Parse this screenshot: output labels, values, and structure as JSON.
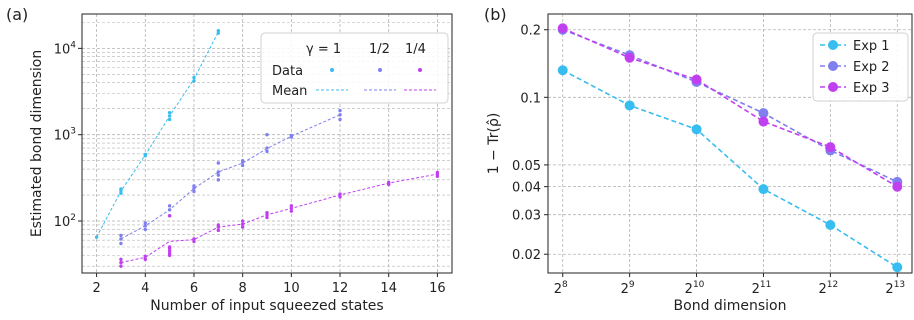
{
  "colors": {
    "gamma_1": "#38bdf0",
    "gamma_half": "#7f7ff0",
    "gamma_quarter": "#c040f0",
    "exp1": "#38bdf0",
    "exp2": "#7f7ff0",
    "exp3": "#c040f0",
    "grid": "#b4b4b4"
  },
  "chart_data": [
    {
      "type": "scatter",
      "panel_label": "(a)",
      "xlabel": "Number of input squeezed states",
      "ylabel": "Estimated bond dimension",
      "xlim": [
        1.4,
        16.6
      ],
      "ylim": [
        25,
        25000
      ],
      "yscale": "log",
      "grid": true,
      "legend_placement": "top-right",
      "x_ticks": [
        2,
        4,
        6,
        8,
        10,
        12,
        14,
        16
      ],
      "y_ticks": [
        {
          "value": 100,
          "base": "10",
          "exp": "2"
        },
        {
          "value": 1000,
          "base": "10",
          "exp": "3"
        },
        {
          "value": 10000,
          "base": "10",
          "exp": "4"
        }
      ],
      "legend": {
        "gamma_header": "γ = 1",
        "col_labels": [
          "1/2",
          "1/4"
        ],
        "row_labels": [
          "Data",
          "Mean"
        ]
      },
      "series": [
        {
          "key": "gamma_1",
          "points": [
            [
              2,
              65
            ],
            [
              3,
              210
            ],
            [
              3,
              225
            ],
            [
              3,
              235
            ],
            [
              4,
              570
            ],
            [
              4,
              590
            ],
            [
              5,
              1500
            ],
            [
              5,
              1650
            ],
            [
              5,
              1800
            ],
            [
              6,
              4200
            ],
            [
              6,
              4600
            ],
            [
              7,
              15000
            ],
            [
              7,
              16000
            ]
          ],
          "mean": [
            [
              2,
              65
            ],
            [
              3,
              222
            ],
            [
              4,
              580
            ],
            [
              5,
              1640
            ],
            [
              6,
              4400
            ],
            [
              7,
              15500
            ]
          ]
        },
        {
          "key": "gamma_half",
          "points": [
            [
              3,
              55
            ],
            [
              3,
              62
            ],
            [
              3,
              68
            ],
            [
              4,
              80
            ],
            [
              4,
              88
            ],
            [
              4,
              95
            ],
            [
              5,
              115
            ],
            [
              5,
              135
            ],
            [
              5,
              150
            ],
            [
              6,
              220
            ],
            [
              6,
              240
            ],
            [
              6,
              255
            ],
            [
              7,
              300
            ],
            [
              7,
              340
            ],
            [
              7,
              370
            ],
            [
              7,
              470
            ],
            [
              8,
              440
            ],
            [
              8,
              480
            ],
            [
              8,
              500
            ],
            [
              9,
              640
            ],
            [
              9,
              700
            ],
            [
              9,
              1000
            ],
            [
              10,
              940
            ],
            [
              10,
              980
            ],
            [
              12,
              1500
            ],
            [
              12,
              1700
            ],
            [
              12,
              1900
            ]
          ],
          "mean": [
            [
              3,
              62
            ],
            [
              4,
              88
            ],
            [
              5,
              135
            ],
            [
              6,
              238
            ],
            [
              7,
              370
            ],
            [
              8,
              470
            ],
            [
              9,
              690
            ],
            [
              10,
              960
            ],
            [
              12,
              1700
            ]
          ]
        },
        {
          "key": "gamma_quarter",
          "points": [
            [
              3,
              30
            ],
            [
              3,
              33
            ],
            [
              3,
              36
            ],
            [
              4,
              36
            ],
            [
              4,
              39
            ],
            [
              5,
              40
            ],
            [
              5,
              42
            ],
            [
              5,
              45
            ],
            [
              5,
              48
            ],
            [
              5,
              50
            ],
            [
              5,
              115
            ],
            [
              6,
              58
            ],
            [
              6,
              62
            ],
            [
              7,
              78
            ],
            [
              7,
              85
            ],
            [
              7,
              90
            ],
            [
              8,
              85
            ],
            [
              8,
              92
            ],
            [
              8,
              100
            ],
            [
              9,
              110
            ],
            [
              9,
              118
            ],
            [
              9,
              125
            ],
            [
              10,
              130
            ],
            [
              10,
              140
            ],
            [
              10,
              150
            ],
            [
              12,
              190
            ],
            [
              12,
              205
            ],
            [
              14,
              265
            ],
            [
              14,
              280
            ],
            [
              16,
              330
            ],
            [
              16,
              350
            ],
            [
              16,
              365
            ]
          ],
          "mean": [
            [
              3,
              33
            ],
            [
              4,
              38
            ],
            [
              5,
              58
            ],
            [
              6,
              61
            ],
            [
              7,
              85
            ],
            [
              8,
              92
            ],
            [
              9,
              118
            ],
            [
              10,
              140
            ],
            [
              12,
              200
            ],
            [
              14,
              275
            ],
            [
              16,
              350
            ]
          ]
        }
      ]
    },
    {
      "type": "line",
      "panel_label": "(b)",
      "xlabel": "Bond dimension",
      "ylabel": "1 − Tr(ρ̂)",
      "yscale": "log",
      "ylim": [
        0.0165,
        0.235
      ],
      "grid": true,
      "legend_placement": "top-right",
      "x": [
        8,
        9,
        10,
        11,
        12,
        13
      ],
      "x_tick_base": "2",
      "x_tick_exps": [
        "8",
        "9",
        "10",
        "11",
        "12",
        "13"
      ],
      "y_ticks": [
        {
          "value": 0.02,
          "label": "0.02"
        },
        {
          "value": 0.03,
          "label": "0.03"
        },
        {
          "value": 0.04,
          "label": "0.04"
        },
        {
          "value": 0.05,
          "label": "0.05"
        },
        {
          "value": 0.1,
          "label": "0.1"
        },
        {
          "value": 0.2,
          "label": "0.2"
        }
      ],
      "series": [
        {
          "key": "exp1",
          "name": "Exp 1",
          "values": [
            0.132,
            0.092,
            0.072,
            0.039,
            0.027,
            0.0175
          ]
        },
        {
          "key": "exp2",
          "name": "Exp 2",
          "values": [
            0.2,
            0.154,
            0.117,
            0.085,
            0.058,
            0.042
          ]
        },
        {
          "key": "exp3",
          "name": "Exp 3",
          "values": [
            0.203,
            0.15,
            0.12,
            0.078,
            0.06,
            0.04
          ]
        }
      ]
    }
  ]
}
